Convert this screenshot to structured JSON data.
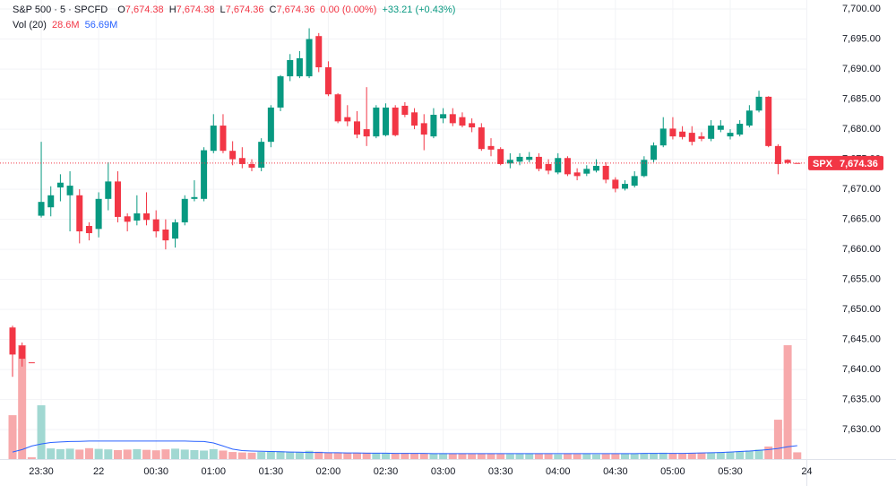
{
  "chart_data": {
    "type": "candlestick",
    "legend": {
      "symbol": "S&P 500 · 5 · SPCFD",
      "fields": [
        {
          "label": "O",
          "value": "7,674.38"
        },
        {
          "label": "H",
          "value": "7,674.38"
        },
        {
          "label": "L",
          "value": "7,674.36"
        },
        {
          "label": "C",
          "value": "7,674.36"
        }
      ],
      "change": "0.00 (0.00%)",
      "day_change": "+33.21 (+0.43%)"
    },
    "volume_legend": {
      "name": "Vol (20)",
      "value": "28.6M",
      "ma": "56.69M"
    },
    "categories": [
      null,
      null,
      null,
      "23:30",
      null,
      null,
      null,
      null,
      null,
      "22",
      null,
      null,
      null,
      null,
      null,
      "00:30",
      null,
      null,
      null,
      null,
      null,
      "01:00",
      null,
      null,
      null,
      null,
      null,
      "01:30",
      null,
      null,
      null,
      null,
      null,
      "02:00",
      null,
      null,
      null,
      null,
      null,
      "02:30",
      null,
      null,
      null,
      null,
      null,
      "03:00",
      null,
      null,
      null,
      null,
      null,
      "03:30",
      null,
      null,
      null,
      null,
      null,
      "04:00",
      null,
      null,
      null,
      null,
      null,
      "04:30",
      null,
      null,
      null,
      null,
      null,
      "05:00",
      null,
      null,
      null,
      null,
      null,
      "05:30",
      null,
      null,
      null,
      null,
      null,
      null,
      null,
      "24"
    ],
    "open": [
      7647.0,
      7644.0,
      7641.2,
      7665.6,
      7667,
      7670.3,
      7669,
      7669,
      7663.9,
      7663.4,
      7668.4,
      7671.3,
      7665.5,
      7664.8,
      7666,
      7665,
      7663.3,
      7661.8,
      7664.5,
      7668.4,
      7668.4,
      7676.4,
      7680.6,
      7676.4,
      7675.2,
      7674.2,
      7673.6,
      7677.9,
      7683.6,
      7688.8,
      7688.8,
      7688.8,
      7695.5,
      7690.3,
      7685.8,
      7682,
      7681.3,
      7680,
      7678.8,
      7679,
      7683.6,
      7683.9,
      7682.8,
      7681,
      7678.8,
      7681.8,
      7682.5,
      7682,
      7681,
      7680.3,
      7677.2,
      7676.7,
      7674.3,
      7674.6,
      7674.9,
      7675.4,
      7674.2,
      7672.8,
      7675.2,
      7672.8,
      7672.6,
      7673.1,
      7673.9,
      7671.6,
      7670.1,
      7670.6,
      7672.2,
      7674.9,
      7677.3,
      7680.1,
      7679.6,
      7679.4,
      7678.8,
      7678.4,
      7679.9,
      7678.8,
      7679.1,
      7680.6,
      7683.1,
      7685.4,
      7677.2,
      7674.9,
      7674.38,
      null
    ],
    "high": [
      7647.3,
      7644.5,
      7641.2,
      7677.9,
      7670.5,
      7672.5,
      7673,
      7670,
      7664.5,
      7669.5,
      7674.5,
      7673,
      7666,
      7669,
      7669.5,
      7666.5,
      7665,
      7665,
      7669,
      7671.5,
      7677,
      7682.5,
      7682.5,
      7678,
      7677,
      7675,
      7678.5,
      7684,
      7689,
      7692.5,
      7693,
      7696.8,
      7696,
      7691.3,
      7686,
      7684,
      7683,
      7687,
      7684,
      7684.3,
      7684,
      7684.5,
      7683.5,
      7682.5,
      7683.5,
      7683.5,
      7683.5,
      7682.8,
      7681.8,
      7681,
      7678.5,
      7677,
      7676,
      7676,
      7676.2,
      7676,
      7675,
      7676,
      7675.5,
      7673.5,
      7674,
      7675,
      7674.5,
      7672,
      7671.5,
      7673,
      7675.5,
      7677.8,
      7682,
      7682,
      7680.5,
      7680.5,
      7679.5,
      7681.5,
      7681.5,
      7680,
      7681.5,
      7684,
      7686.4,
      7685.5,
      7677.5,
      7675,
      7674.38,
      null
    ],
    "low": [
      7638.8,
      7640.5,
      7641.2,
      7665.3,
      7665.5,
      7668,
      7663,
      7661,
      7661.5,
      7662,
      7666.5,
      7664.5,
      7663,
      7664,
      7664,
      7662,
      7660,
      7660.3,
      7664,
      7668,
      7668,
      7676,
      7676,
      7674,
      7673.5,
      7673,
      7673,
      7677,
      7683,
      7688,
      7688.5,
      7688.5,
      7689.5,
      7685.5,
      7681,
      7680.5,
      7678.5,
      7677.2,
      7678.5,
      7678.8,
      7678.8,
      7682,
      7680,
      7676.5,
      7678.5,
      7681,
      7680.5,
      7680.3,
      7679.5,
      7676.4,
      7675.5,
      7674,
      7673.5,
      7674,
      7674.5,
      7673,
      7672.5,
      7672.5,
      7672.2,
      7671.5,
      7672.2,
      7672.8,
      7671,
      7669.5,
      7669.8,
      7670.3,
      7672,
      7674.5,
      7677,
      7678.3,
      7678.3,
      7677.3,
      7678,
      7678,
      7679.5,
      7678.3,
      7678.8,
      7680.3,
      7682.8,
      7677,
      7672.5,
      7674.2,
      7674.36,
      null
    ],
    "close": [
      7642.5,
      7641.8,
      7641.2,
      7667.9,
      7669,
      7671.1,
      7670.6,
      7663,
      7662.7,
      7668.4,
      7671.3,
      7665.4,
      7664.6,
      7666,
      7664.9,
      7663,
      7661.5,
      7664.5,
      7668.4,
      7668.7,
      7676.5,
      7680.6,
      7676.4,
      7675,
      7674.2,
      7673.6,
      7677.9,
      7683.6,
      7688.8,
      7691.5,
      7691.8,
      7695,
      7690.3,
      7685.8,
      7681.3,
      7681.3,
      7679.1,
      7678.8,
      7683.6,
      7683.6,
      7679,
      7682.4,
      7680.6,
      7679.1,
      7682.4,
      7682.5,
      7681,
      7680.6,
      7680.3,
      7676.7,
      7676.6,
      7674.2,
      7674.9,
      7675.4,
      7675.4,
      7673.4,
      7673.1,
      7675.2,
      7672.5,
      7672.2,
      7673.4,
      7673.9,
      7671.6,
      7670.1,
      7670.9,
      7672.2,
      7674.9,
      7677.3,
      7680.1,
      7678.8,
      7678.7,
      7677.9,
      7678.4,
      7680.6,
      7680.6,
      7679.4,
      7680.9,
      7683.1,
      7685.4,
      7677.2,
      7674.2,
      7674.4,
      7674.36,
      null
    ],
    "volume": [
      185,
      480,
      8,
      227,
      45,
      42,
      44,
      40,
      46,
      43,
      41,
      38,
      40,
      42,
      39,
      37,
      41,
      44,
      40,
      38,
      36,
      42,
      36,
      30,
      28,
      27,
      30,
      34,
      33,
      31,
      29,
      35,
      31,
      28,
      27,
      26,
      25,
      27,
      26,
      25,
      24,
      26,
      25,
      24,
      23,
      25,
      24,
      23,
      22,
      24,
      23,
      22,
      21,
      22,
      23,
      22,
      21,
      20,
      22,
      21,
      22,
      20,
      21,
      22,
      23,
      24,
      25,
      26,
      27,
      25,
      24,
      26,
      27,
      28,
      29,
      31,
      33,
      36,
      40,
      53,
      166,
      480,
      28.6,
      null
    ],
    "volume_ma": [
      30,
      40,
      55,
      64,
      70,
      72,
      74,
      75,
      76,
      76,
      76,
      76,
      76,
      76,
      76,
      76,
      76,
      76,
      76,
      75,
      74,
      68,
      55,
      42,
      36,
      34,
      33,
      32,
      31,
      30,
      29,
      28,
      28,
      27,
      27,
      26,
      26,
      25,
      25,
      25,
      24,
      24,
      24,
      24,
      23,
      23,
      23,
      23,
      23,
      23,
      23,
      23,
      23,
      23,
      23,
      23,
      23,
      23,
      23,
      23,
      23,
      23,
      23,
      23,
      23,
      23,
      24,
      24,
      24,
      24,
      24,
      25,
      26,
      27,
      28,
      30,
      32,
      34,
      37,
      40,
      45,
      52,
      56.69,
      null
    ],
    "up_color": "#089981",
    "down_color": "#f23645",
    "up_volume_color": "#a1d8d2",
    "down_volume_color": "#f7a9ab",
    "ma_color": "#2962ff",
    "ylim": [
      7625.1,
      7701.5
    ],
    "yticks": [
      {
        "value": 7630,
        "label": "7,630.00"
      },
      {
        "value": 7635,
        "label": "7,635.00"
      },
      {
        "value": 7640,
        "label": "7,640.00"
      },
      {
        "value": 7645,
        "label": "7,645.00"
      },
      {
        "value": 7650,
        "label": "7,650.00"
      },
      {
        "value": 7655,
        "label": "7,655.00"
      },
      {
        "value": 7660,
        "label": "7,660.00"
      },
      {
        "value": 7665,
        "label": "7,665.00"
      },
      {
        "value": 7670,
        "label": "7,670.00"
      },
      {
        "value": 7675,
        "label": "7,675.00"
      },
      {
        "value": 7680,
        "label": "7,680.00"
      },
      {
        "value": 7685,
        "label": "7,685.00"
      },
      {
        "value": 7690,
        "label": "7,690.00"
      },
      {
        "value": 7695,
        "label": "7,695.00"
      },
      {
        "value": 7700,
        "label": "7,700.00"
      }
    ],
    "grid": true,
    "last_price": {
      "name": "SPX",
      "value": 7674.36,
      "label": "7,674.36"
    }
  }
}
